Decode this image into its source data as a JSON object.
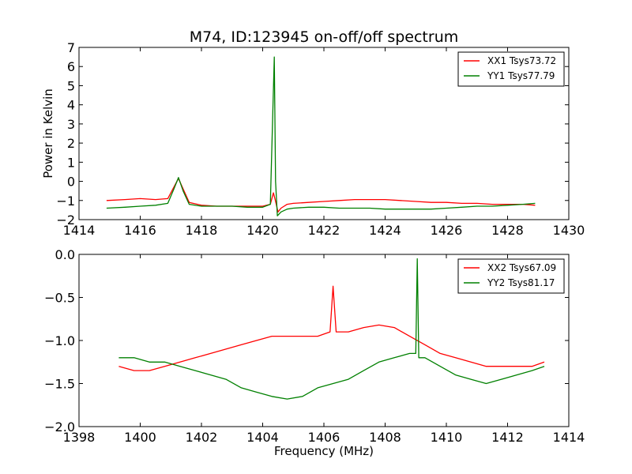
{
  "chart_data": [
    {
      "type": "line",
      "title": "M74, ID:123945 on-off/off spectrum",
      "xlabel": "",
      "ylabel": "Power in Kelvin",
      "xlim": [
        1414,
        1430
      ],
      "ylim": [
        -2,
        7
      ],
      "xticks": [
        1414,
        1416,
        1418,
        1420,
        1422,
        1424,
        1426,
        1428,
        1430
      ],
      "yticks": [
        -2,
        -1,
        0,
        1,
        2,
        3,
        4,
        5,
        6,
        7
      ],
      "legend_position": "top-right",
      "series": [
        {
          "name": "XX1 Tsys73.72",
          "color": "#ff0000",
          "x": [
            1414.9,
            1415.5,
            1416.0,
            1416.5,
            1416.9,
            1417.1,
            1417.25,
            1417.4,
            1417.6,
            1418.0,
            1418.5,
            1419.0,
            1419.5,
            1420.0,
            1420.25,
            1420.35,
            1420.4,
            1420.5,
            1420.6,
            1420.8,
            1421.0,
            1421.5,
            1422.0,
            1422.5,
            1423.0,
            1423.5,
            1424.0,
            1424.5,
            1425.0,
            1425.5,
            1426.0,
            1426.5,
            1427.0,
            1427.5,
            1428.0,
            1428.5,
            1428.9
          ],
          "y": [
            -1.0,
            -0.95,
            -0.9,
            -0.95,
            -0.9,
            -0.3,
            0.15,
            -0.4,
            -1.1,
            -1.25,
            -1.3,
            -1.3,
            -1.3,
            -1.3,
            -1.2,
            -0.6,
            -0.9,
            -1.6,
            -1.4,
            -1.2,
            -1.15,
            -1.1,
            -1.05,
            -1.0,
            -0.95,
            -0.95,
            -0.95,
            -1.0,
            -1.05,
            -1.1,
            -1.1,
            -1.15,
            -1.15,
            -1.2,
            -1.2,
            -1.2,
            -1.25
          ]
        },
        {
          "name": "YY1 Tsys77.79",
          "color": "#008000",
          "x": [
            1414.9,
            1415.5,
            1416.0,
            1416.5,
            1416.9,
            1417.1,
            1417.25,
            1417.4,
            1417.6,
            1418.0,
            1418.5,
            1419.0,
            1419.5,
            1420.0,
            1420.25,
            1420.38,
            1420.42,
            1420.48,
            1420.6,
            1420.8,
            1421.0,
            1421.5,
            1422.0,
            1422.5,
            1423.0,
            1423.5,
            1424.0,
            1424.5,
            1425.0,
            1425.5,
            1426.0,
            1426.5,
            1427.0,
            1427.5,
            1428.0,
            1428.5,
            1428.9
          ],
          "y": [
            -1.4,
            -1.35,
            -1.3,
            -1.25,
            -1.15,
            -0.4,
            0.2,
            -0.5,
            -1.2,
            -1.3,
            -1.3,
            -1.3,
            -1.35,
            -1.35,
            -1.2,
            6.5,
            0.0,
            -1.8,
            -1.6,
            -1.45,
            -1.4,
            -1.35,
            -1.35,
            -1.4,
            -1.4,
            -1.4,
            -1.45,
            -1.45,
            -1.45,
            -1.45,
            -1.4,
            -1.35,
            -1.3,
            -1.3,
            -1.25,
            -1.2,
            -1.15
          ]
        }
      ]
    },
    {
      "type": "line",
      "title": "",
      "xlabel": "Frequency (MHz)",
      "ylabel": "",
      "xlim": [
        1398,
        1414
      ],
      "ylim": [
        -2.0,
        0.0
      ],
      "xticks": [
        1398,
        1400,
        1402,
        1404,
        1406,
        1408,
        1410,
        1412,
        1414
      ],
      "yticks": [
        -2.0,
        -1.5,
        -1.0,
        -0.5,
        0.0
      ],
      "legend_position": "top-right",
      "series": [
        {
          "name": "XX2 Tsys67.09",
          "color": "#ff0000",
          "x": [
            1399.3,
            1399.8,
            1400.3,
            1400.8,
            1401.3,
            1401.8,
            1402.3,
            1402.8,
            1403.3,
            1403.8,
            1404.3,
            1404.8,
            1405.3,
            1405.8,
            1406.2,
            1406.3,
            1406.4,
            1406.8,
            1407.3,
            1407.8,
            1408.3,
            1408.8,
            1409.3,
            1409.8,
            1410.3,
            1410.8,
            1411.3,
            1411.8,
            1412.3,
            1412.8,
            1413.2
          ],
          "y": [
            -1.3,
            -1.35,
            -1.35,
            -1.3,
            -1.25,
            -1.2,
            -1.15,
            -1.1,
            -1.05,
            -1.0,
            -0.95,
            -0.95,
            -0.95,
            -0.95,
            -0.9,
            -0.37,
            -0.9,
            -0.9,
            -0.85,
            -0.82,
            -0.85,
            -0.95,
            -1.05,
            -1.15,
            -1.2,
            -1.25,
            -1.3,
            -1.3,
            -1.3,
            -1.3,
            -1.25
          ]
        },
        {
          "name": "YY2 Tsys81.17",
          "color": "#008000",
          "x": [
            1399.3,
            1399.8,
            1400.3,
            1400.8,
            1401.3,
            1401.8,
            1402.3,
            1402.8,
            1403.3,
            1403.8,
            1404.3,
            1404.8,
            1405.3,
            1405.8,
            1406.3,
            1406.8,
            1407.3,
            1407.8,
            1408.3,
            1408.8,
            1409.0,
            1409.05,
            1409.1,
            1409.3,
            1409.8,
            1410.3,
            1410.8,
            1411.3,
            1411.8,
            1412.3,
            1412.8,
            1413.2
          ],
          "y": [
            -1.2,
            -1.2,
            -1.25,
            -1.25,
            -1.3,
            -1.35,
            -1.4,
            -1.45,
            -1.55,
            -1.6,
            -1.65,
            -1.68,
            -1.65,
            -1.55,
            -1.5,
            -1.45,
            -1.35,
            -1.25,
            -1.2,
            -1.15,
            -1.15,
            -0.05,
            -1.2,
            -1.2,
            -1.3,
            -1.4,
            -1.45,
            -1.5,
            -1.45,
            -1.4,
            -1.35,
            -1.3
          ]
        }
      ]
    }
  ]
}
